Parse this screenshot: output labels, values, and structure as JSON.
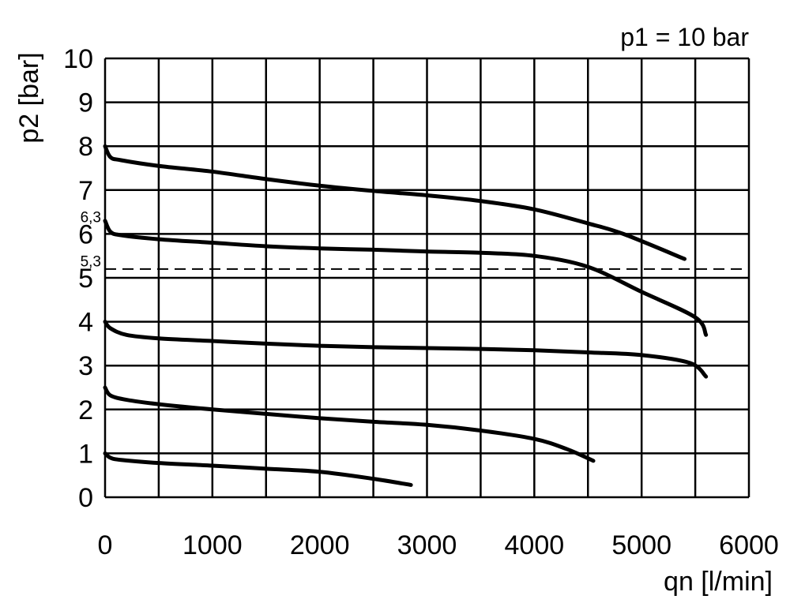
{
  "chart_data": {
    "type": "line",
    "title": "p1 = 10 bar",
    "xlabel": "qn [l/min]",
    "ylabel": "p2 [bar]",
    "xlim": [
      0,
      6000
    ],
    "ylim": [
      0,
      10
    ],
    "xticks": [
      0,
      1000,
      2000,
      3000,
      4000,
      5000,
      6000
    ],
    "yticks": [
      0,
      1,
      2,
      3,
      4,
      5,
      6,
      7,
      8,
      9,
      10
    ],
    "grid": true,
    "grid_step": {
      "x": 500,
      "y": 1
    },
    "annotations": [
      {
        "text": "6,3",
        "y": 6.3
      },
      {
        "text": "5,3",
        "y": 5.3
      }
    ],
    "reference_line": {
      "y": 5.2,
      "style": "dashed"
    },
    "series": [
      {
        "x": [
          0,
          50,
          150,
          500,
          1000,
          1500,
          2000,
          2500,
          3000,
          3500,
          4000,
          4500,
          4830,
          5400
        ],
        "y": [
          8.0,
          7.75,
          7.68,
          7.55,
          7.42,
          7.25,
          7.1,
          6.98,
          6.88,
          6.75,
          6.56,
          6.24,
          6.0,
          5.43
        ]
      },
      {
        "x": [
          0,
          50,
          150,
          500,
          1000,
          1500,
          2000,
          2500,
          3000,
          3500,
          4000,
          4500,
          5000,
          5500,
          5600
        ],
        "y": [
          6.3,
          6.05,
          5.97,
          5.88,
          5.8,
          5.72,
          5.67,
          5.64,
          5.6,
          5.57,
          5.5,
          5.25,
          4.68,
          4.1,
          3.7
        ]
      },
      {
        "x": [
          0,
          50,
          200,
          500,
          1000,
          1500,
          2000,
          2500,
          3000,
          3500,
          4000,
          4500,
          5000,
          5450,
          5600
        ],
        "y": [
          4.0,
          3.85,
          3.7,
          3.62,
          3.56,
          3.5,
          3.45,
          3.42,
          3.4,
          3.38,
          3.35,
          3.3,
          3.24,
          3.06,
          2.75
        ]
      },
      {
        "x": [
          0,
          50,
          200,
          500,
          1000,
          1500,
          2000,
          2500,
          3000,
          3500,
          4000,
          4300,
          4550
        ],
        "y": [
          2.5,
          2.32,
          2.22,
          2.12,
          2.0,
          1.9,
          1.8,
          1.72,
          1.65,
          1.52,
          1.33,
          1.1,
          0.83
        ]
      },
      {
        "x": [
          0,
          50,
          150,
          500,
          1000,
          1500,
          2000,
          2500,
          2850
        ],
        "y": [
          1.0,
          0.9,
          0.85,
          0.78,
          0.72,
          0.65,
          0.58,
          0.42,
          0.28
        ]
      }
    ]
  }
}
